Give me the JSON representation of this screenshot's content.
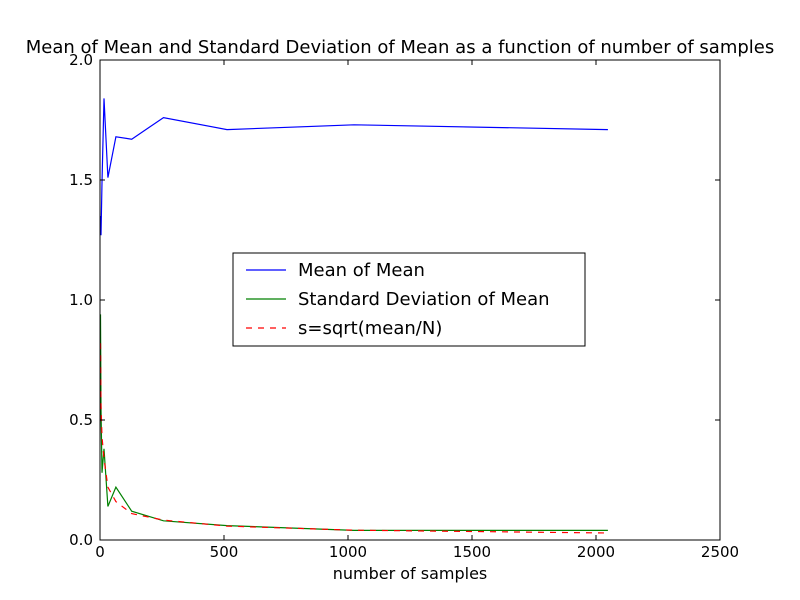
{
  "chart_data": {
    "type": "line",
    "title": "Mean of Mean and Standard Deviation of Mean as a function of number of samples",
    "xlabel": "number of samples",
    "ylabel": "",
    "xlim": [
      0,
      2500
    ],
    "ylim": [
      0,
      2.0
    ],
    "xticks": [
      "0",
      "500",
      "1000",
      "1500",
      "2000",
      "2500"
    ],
    "yticks": [
      "0.0",
      "0.5",
      "1.0",
      "1.5",
      "2.0"
    ],
    "grid": false,
    "legend_position": "center",
    "series": [
      {
        "name": "Mean of Mean",
        "color": "#0000ff",
        "dash": "solid",
        "x": [
          2,
          4,
          8,
          16,
          32,
          64,
          128,
          256,
          512,
          1024,
          2048
        ],
        "y": [
          1.35,
          1.27,
          1.49,
          1.84,
          1.51,
          1.68,
          1.67,
          1.76,
          1.71,
          1.73,
          1.71
        ]
      },
      {
        "name": "Standard Deviation of Mean",
        "color": "#008000",
        "dash": "solid",
        "x": [
          2,
          4,
          8,
          16,
          32,
          64,
          128,
          256,
          512,
          1024,
          2048
        ],
        "y": [
          0.94,
          0.55,
          0.28,
          0.38,
          0.14,
          0.22,
          0.12,
          0.08,
          0.06,
          0.04,
          0.04
        ]
      },
      {
        "name": "s=sqrt(mean/N)",
        "color": "#ff0000",
        "dash": "dashed",
        "x": [
          2,
          4,
          8,
          16,
          32,
          64,
          128,
          256,
          512,
          1024,
          2048
        ],
        "y": [
          0.82,
          0.56,
          0.43,
          0.34,
          0.22,
          0.16,
          0.11,
          0.083,
          0.058,
          0.041,
          0.029
        ]
      }
    ]
  }
}
